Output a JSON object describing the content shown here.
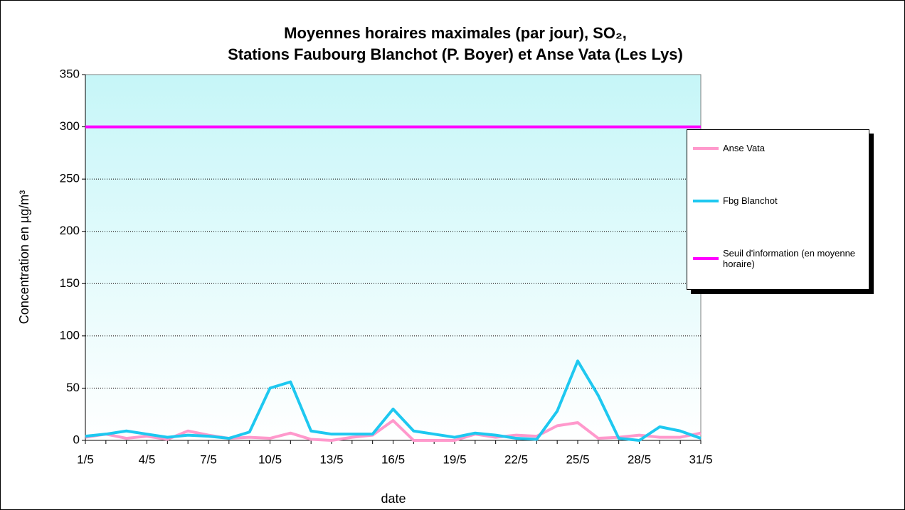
{
  "chart_data": {
    "type": "line",
    "title": [
      "Moyennes horaires maximales (par jour), SO₂,",
      "Stations Faubourg Blanchot (P. Boyer) et Anse Vata (Les Lys)"
    ],
    "x_label": "date",
    "y_label": "Concentration en µg/m³",
    "categories": [
      "1/5",
      null,
      null,
      "4/5",
      null,
      null,
      "7/5",
      null,
      null,
      "10/5",
      null,
      null,
      "13/5",
      null,
      null,
      "16/5",
      null,
      null,
      "19/5",
      null,
      null,
      "22/5",
      null,
      null,
      "25/5",
      null,
      null,
      "28/5",
      null,
      null,
      "31/5"
    ],
    "series": [
      {
        "name": "Anse Vata",
        "color": "#ff99cc",
        "values": [
          3,
          6,
          2,
          4,
          1,
          9,
          5,
          2,
          3,
          2,
          7,
          1,
          0,
          3,
          5,
          19,
          0,
          0,
          0,
          6,
          3,
          5,
          4,
          14,
          17,
          2,
          3,
          5,
          3,
          3,
          7
        ]
      },
      {
        "name": "Fbg Blanchot",
        "color": "#1ec8f0",
        "values": [
          4,
          6,
          9,
          6,
          3,
          5,
          4,
          2,
          8,
          50,
          56,
          9,
          6,
          6,
          6,
          30,
          9,
          6,
          3,
          7,
          5,
          2,
          1,
          28,
          76,
          43,
          2,
          0,
          13,
          9,
          2
        ]
      },
      {
        "name": "Seuil d'information (en moyenne horaire)",
        "color": "#ff00ff",
        "values": [
          300,
          300,
          300,
          300,
          300,
          300,
          300,
          300,
          300,
          300,
          300,
          300,
          300,
          300,
          300,
          300,
          300,
          300,
          300,
          300,
          300,
          300,
          300,
          300,
          300,
          300,
          300,
          300,
          300,
          300,
          300
        ]
      }
    ],
    "ylim": [
      0,
      350
    ],
    "yticks": [
      0,
      50,
      100,
      150,
      200,
      250,
      300,
      350
    ],
    "grid": true,
    "legend": "right"
  }
}
